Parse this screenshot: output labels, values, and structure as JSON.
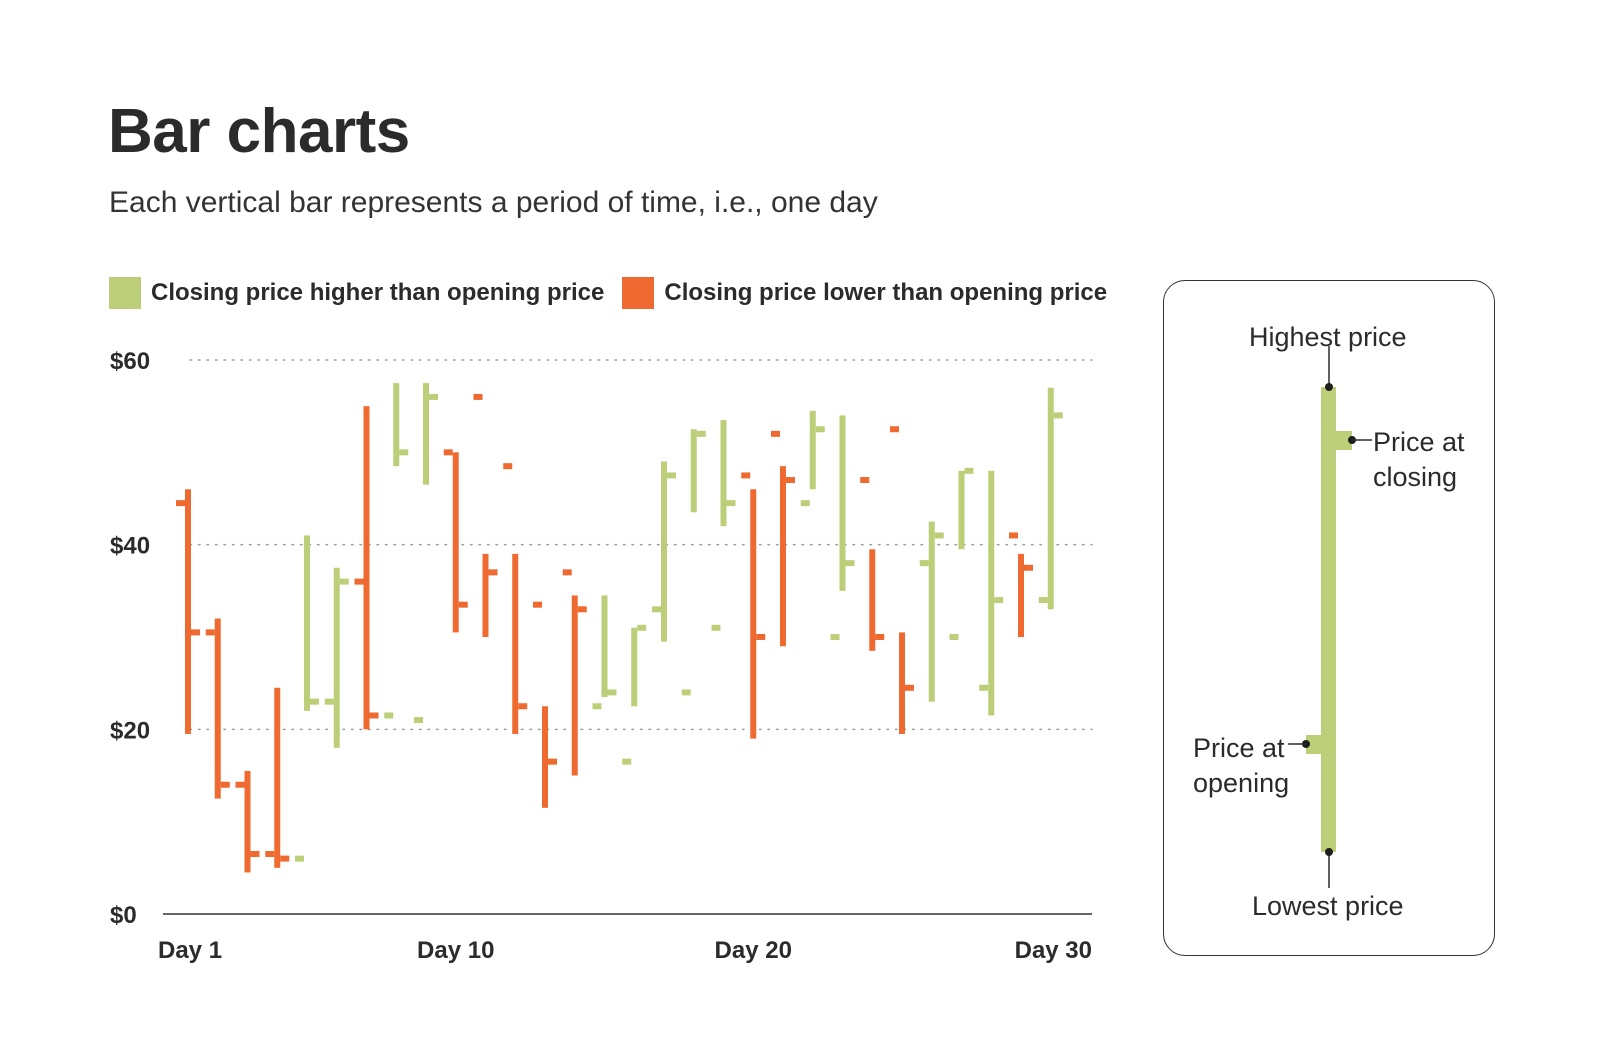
{
  "title": "Bar charts",
  "subtitle": "Each vertical bar represents a period of time, i.e., one day",
  "colors": {
    "up": "#bccf78",
    "down": "#ef6a30",
    "text": "#2b2b2b",
    "grid": "#9a9a9a"
  },
  "legend": {
    "up_label": "Closing price higher than opening price",
    "down_label": "Closing price lower than opening price"
  },
  "explainer": {
    "high_label": "Highest price",
    "close_label": [
      "Price at",
      "closing"
    ],
    "open_label": [
      "Price at",
      "opening"
    ],
    "low_label": "Lowest price"
  },
  "chart_data": {
    "type": "ohlc",
    "title": "Bar charts",
    "xlabel": "",
    "ylabel": "",
    "ylim": [
      0,
      60
    ],
    "y_ticks": [
      0,
      20,
      40,
      60
    ],
    "y_tick_labels": [
      "$0",
      "$20",
      "$40",
      "$60"
    ],
    "x_tick_days": [
      1,
      10,
      20,
      30
    ],
    "x_tick_labels": [
      "Day 1",
      "Day 10",
      "Day 20",
      "Day 30"
    ],
    "grid": "dotted horizontal at $20, $40, $60",
    "legend_position": "top",
    "days": [
      1,
      2,
      3,
      4,
      5,
      6,
      7,
      8,
      9,
      10,
      11,
      12,
      13,
      14,
      15,
      16,
      17,
      18,
      19,
      20,
      21,
      22,
      23,
      24,
      25,
      26,
      27,
      28,
      29,
      30
    ],
    "series": [
      {
        "name": "open",
        "values": [
          44.5,
          30.5,
          14,
          6.5,
          6,
          23,
          36,
          21.5,
          21,
          50,
          56,
          48.5,
          33.5,
          37,
          22.5,
          16.5,
          33,
          24,
          31,
          47.5,
          52,
          44.5,
          30,
          47,
          52.5,
          38,
          30,
          24.5,
          41,
          34
        ]
      },
      {
        "name": "high",
        "values": [
          46,
          32,
          15.5,
          24.5,
          41,
          37.5,
          55,
          57.5,
          57.5,
          50,
          39,
          39,
          22.5,
          34.5,
          34.5,
          31,
          49,
          52.5,
          53.5,
          46,
          48.5,
          54.5,
          54,
          39.5,
          30.5,
          42.5,
          48,
          48,
          39,
          57
        ]
      },
      {
        "name": "low",
        "values": [
          19.5,
          12.5,
          4.5,
          5,
          22,
          18,
          20,
          48.5,
          46.5,
          30.5,
          30,
          19.5,
          11.5,
          15,
          23.5,
          22.5,
          29.5,
          43.5,
          42,
          19,
          29,
          46,
          35,
          28.5,
          19.5,
          23,
          39.5,
          21.5,
          30,
          33
        ]
      },
      {
        "name": "close",
        "values": [
          30.5,
          14,
          6.5,
          6,
          23,
          36,
          21.5,
          50,
          56,
          33.5,
          37,
          22.5,
          16.5,
          33,
          24,
          31,
          47.5,
          52,
          44.5,
          30,
          47,
          52.5,
          38,
          30,
          24.5,
          41,
          48,
          34,
          37.5,
          54
        ]
      }
    ]
  }
}
